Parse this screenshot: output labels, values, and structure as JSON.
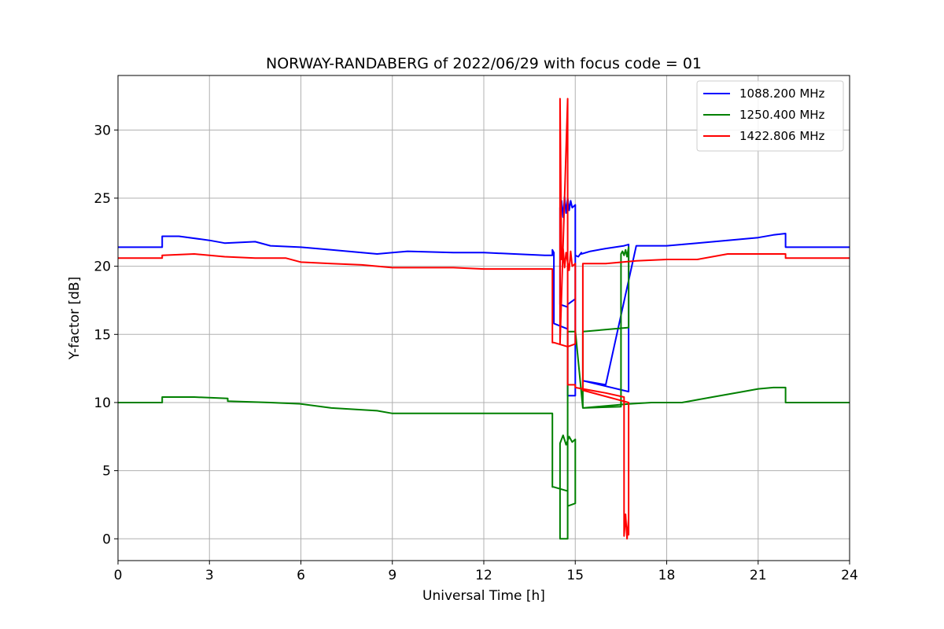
{
  "chart_data": {
    "type": "line",
    "title": "NORWAY-RANDABERG of 2022/06/29 with focus code = 01",
    "xlabel": "Universal Time [h]",
    "ylabel": "Y-factor [dB]",
    "xlim": [
      0,
      24
    ],
    "ylim": [
      -1.6,
      34
    ],
    "xticks": [
      0,
      3,
      6,
      9,
      12,
      15,
      18,
      21,
      24
    ],
    "yticks": [
      0,
      5,
      10,
      15,
      20,
      25,
      30
    ],
    "grid": true,
    "legend_position": "top-right",
    "series": [
      {
        "name": "1088.200 MHz",
        "color": "#0000ff",
        "x": [
          0,
          1.45,
          1.45,
          2.0,
          3.0,
          3.5,
          4.5,
          5.0,
          6.0,
          7.0,
          8.5,
          9.5,
          11.0,
          12.0,
          13.0,
          14.0,
          14.25,
          14.25,
          14.3,
          14.3,
          14.75,
          14.75,
          14.5,
          14.5,
          14.55,
          14.6,
          14.65,
          14.7,
          14.75,
          14.8,
          14.85,
          14.9,
          15.0,
          15.0,
          14.75,
          14.75,
          15.0,
          15.0,
          15.1,
          15.2,
          15.2,
          15.5,
          16.0,
          16.6,
          16.6,
          16.75,
          16.75,
          15.25,
          15.25,
          16.0,
          17.0,
          18.0,
          19.0,
          20.0,
          20.5,
          21.0,
          21.5,
          21.9,
          21.9,
          24
        ],
        "y": [
          21.4,
          21.4,
          22.2,
          22.2,
          21.9,
          21.7,
          21.8,
          21.5,
          21.4,
          21.2,
          20.9,
          21.1,
          21.0,
          21.0,
          20.9,
          20.8,
          20.8,
          21.2,
          21.0,
          15.8,
          15.4,
          17.0,
          17.2,
          24.3,
          24.8,
          23.6,
          25.1,
          23.9,
          25.0,
          24.1,
          24.8,
          24.3,
          24.5,
          17.6,
          17.2,
          10.5,
          10.5,
          20.8,
          20.7,
          21.0,
          20.9,
          21.1,
          21.3,
          21.5,
          21.5,
          21.6,
          10.8,
          11.6,
          11.6,
          11.3,
          21.5,
          21.5,
          21.7,
          21.9,
          22.0,
          22.1,
          22.3,
          22.4,
          21.4,
          21.4
        ]
      },
      {
        "name": "1250.400 MHz",
        "color": "#008000",
        "x": [
          0,
          1.45,
          1.45,
          2.5,
          3.6,
          3.6,
          5.0,
          6.0,
          7.0,
          8.5,
          9.0,
          11.0,
          13.0,
          14.25,
          14.25,
          14.3,
          14.3,
          14.75,
          14.75,
          14.5,
          14.5,
          14.6,
          14.7,
          14.8,
          14.9,
          15.0,
          15.0,
          14.75,
          14.75,
          15.0,
          15.0,
          15.25,
          15.25,
          16.5,
          16.5,
          16.55,
          16.6,
          16.65,
          16.7,
          16.75,
          16.75,
          15.25,
          15.25,
          16.75,
          17.5,
          18.0,
          18.5,
          19.5,
          20.5,
          21.0,
          21.5,
          21.9,
          21.9,
          24
        ],
        "y": [
          10.0,
          10.0,
          10.4,
          10.4,
          10.3,
          10.1,
          10.0,
          9.9,
          9.6,
          9.4,
          9.2,
          9.2,
          9.2,
          9.2,
          3.8,
          3.8,
          3.8,
          3.5,
          0.0,
          0.0,
          7.0,
          7.6,
          6.9,
          7.5,
          7.1,
          7.3,
          2.6,
          2.4,
          15.2,
          15.2,
          15.3,
          9.6,
          9.6,
          9.7,
          20.9,
          21.1,
          20.8,
          21.2,
          20.7,
          21.4,
          15.5,
          15.2,
          9.6,
          9.9,
          10.0,
          10.0,
          10.0,
          10.4,
          10.8,
          11.0,
          11.1,
          11.1,
          10.0,
          10.0
        ]
      },
      {
        "name": "1422.806 MHz",
        "color": "#ff0000",
        "x": [
          0,
          1.45,
          1.45,
          2.5,
          3.5,
          4.5,
          5.5,
          6.0,
          7.0,
          8.0,
          9.0,
          10.0,
          11.0,
          12.0,
          13.0,
          14.25,
          14.25,
          14.3,
          14.3,
          14.75,
          14.75,
          14.5,
          14.5,
          14.55,
          14.6,
          14.65,
          14.7,
          14.75,
          14.8,
          14.85,
          14.9,
          15.0,
          15.0,
          14.75,
          14.75,
          15.0,
          15.0,
          15.25,
          16.0,
          16.6,
          16.6,
          16.65,
          16.7,
          16.75,
          16.75,
          16.75,
          15.25,
          15.25,
          16.0,
          17.0,
          18.0,
          19.0,
          20.0,
          21.0,
          21.9,
          21.9,
          24
        ],
        "y": [
          20.6,
          20.6,
          20.8,
          20.9,
          20.7,
          20.6,
          20.6,
          20.3,
          20.2,
          20.1,
          19.9,
          19.9,
          19.9,
          19.8,
          19.8,
          19.8,
          14.4,
          14.4,
          14.4,
          14.1,
          32.3,
          14.3,
          32.3,
          20.5,
          21.3,
          19.9,
          21.0,
          20.3,
          19.7,
          21.1,
          20.0,
          20.2,
          14.3,
          14.1,
          11.3,
          11.3,
          11.1,
          11.0,
          10.7,
          10.4,
          0.2,
          1.8,
          0.0,
          1.5,
          0.3,
          10.0,
          10.9,
          20.2,
          20.2,
          20.4,
          20.5,
          20.5,
          20.9,
          20.9,
          20.9,
          20.6,
          20.6
        ]
      }
    ]
  }
}
